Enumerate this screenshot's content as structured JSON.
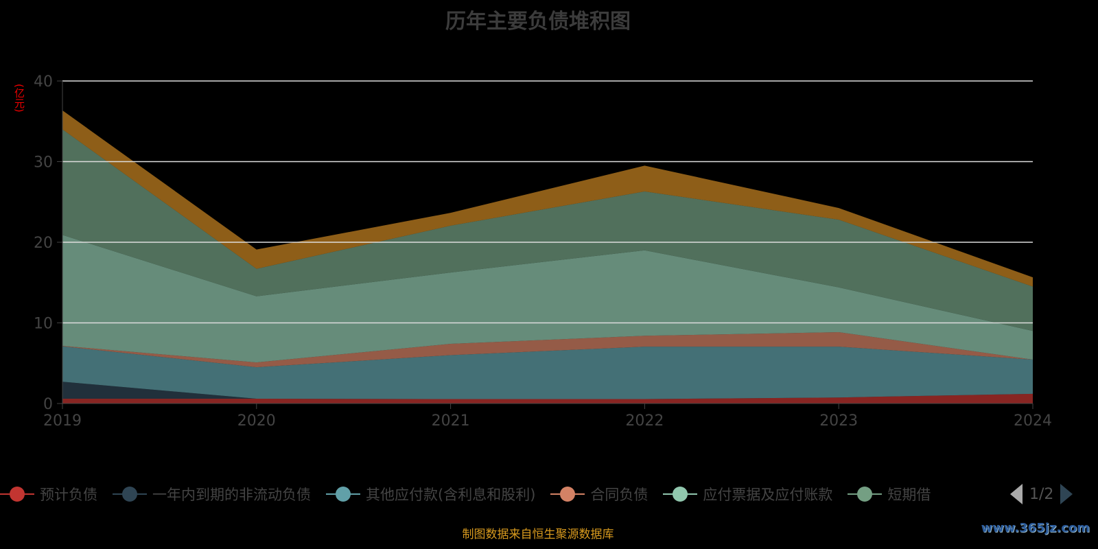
{
  "title": "历年主要负债堆积图",
  "unit": "(亿元)",
  "source": "制图数据来自恒生聚源数据库",
  "watermark": "www.365jz.com",
  "legend_pager": "1/2",
  "legend_visible": [
    "预计负债",
    "一年内到期的非流动负债",
    "其他应付款(含利息和股利)",
    "合同负债",
    "应付票据及应付账款",
    "短期借"
  ],
  "chart_data": {
    "type": "area",
    "stacked": true,
    "title": "历年主要负债堆积图",
    "ylabel": "(亿元)",
    "ylim": [
      0,
      40
    ],
    "yticks": [
      0,
      10,
      20,
      30,
      40
    ],
    "categories": [
      "2019",
      "2020",
      "2021",
      "2022",
      "2023",
      "2024"
    ],
    "series": [
      {
        "name": "预计负债",
        "color": "#c23531",
        "values": [
          0.6,
          0.6,
          0.55,
          0.55,
          0.75,
          1.2
        ]
      },
      {
        "name": "一年内到期的非流动负债",
        "color": "#2f4554",
        "values": [
          2.1,
          0,
          0,
          0,
          0,
          0
        ]
      },
      {
        "name": "其他应付款(含利息和股利)",
        "color": "#61a0a8",
        "values": [
          4.4,
          3.9,
          5.45,
          6.5,
          6.3,
          4.25
        ]
      },
      {
        "name": "合同负债",
        "color": "#d48265",
        "values": [
          0.05,
          0.6,
          1.4,
          1.35,
          1.8,
          0
        ]
      },
      {
        "name": "应付票据及应付账款",
        "color": "#91c7ae",
        "values": [
          13.75,
          8.2,
          8.85,
          10.6,
          5.55,
          3.55
        ]
      },
      {
        "name": "短期借款",
        "color": "#749f83",
        "values": [
          13.1,
          3.4,
          5.8,
          7.3,
          8.4,
          5.5
        ]
      },
      {
        "name": "",
        "color": "#ca8622",
        "values": [
          2.35,
          2.4,
          1.6,
          3.2,
          1.45,
          1.15
        ]
      }
    ]
  }
}
